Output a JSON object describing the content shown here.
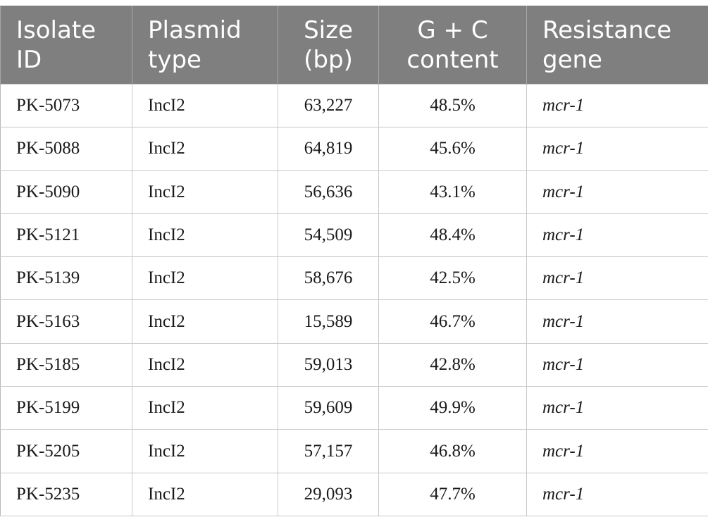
{
  "table": {
    "headers": [
      {
        "lines": [
          "Isolate",
          "ID"
        ]
      },
      {
        "lines": [
          "Plasmid",
          "type"
        ]
      },
      {
        "lines": [
          "Size",
          "(bp)"
        ]
      },
      {
        "lines": [
          "G + C",
          "content"
        ]
      },
      {
        "lines": [
          "Resistance",
          "gene"
        ]
      }
    ],
    "rows": [
      {
        "isolate_id": "PK-5073",
        "plasmid_type": "IncI2",
        "size": "63,227",
        "gc_content": "48.5%",
        "resistance_gene": "mcr-1"
      },
      {
        "isolate_id": "PK-5088",
        "plasmid_type": "IncI2",
        "size": "64,819",
        "gc_content": "45.6%",
        "resistance_gene": "mcr-1"
      },
      {
        "isolate_id": "PK-5090",
        "plasmid_type": "IncI2",
        "size": "56,636",
        "gc_content": "43.1%",
        "resistance_gene": "mcr-1"
      },
      {
        "isolate_id": "PK-5121",
        "plasmid_type": "IncI2",
        "size": "54,509",
        "gc_content": "48.4%",
        "resistance_gene": "mcr-1"
      },
      {
        "isolate_id": "PK-5139",
        "plasmid_type": "IncI2",
        "size": "58,676",
        "gc_content": "42.5%",
        "resistance_gene": "mcr-1"
      },
      {
        "isolate_id": "PK-5163",
        "plasmid_type": "IncI2",
        "size": "15,589",
        "gc_content": "46.7%",
        "resistance_gene": "mcr-1"
      },
      {
        "isolate_id": "PK-5185",
        "plasmid_type": "IncI2",
        "size": "59,013",
        "gc_content": "42.8%",
        "resistance_gene": "mcr-1"
      },
      {
        "isolate_id": "PK-5199",
        "plasmid_type": "IncI2",
        "size": "59,609",
        "gc_content": "49.9%",
        "resistance_gene": "mcr-1"
      },
      {
        "isolate_id": "PK-5205",
        "plasmid_type": "IncI2",
        "size": "57,157",
        "gc_content": "46.8%",
        "resistance_gene": "mcr-1"
      },
      {
        "isolate_id": "PK-5235",
        "plasmid_type": "IncI2",
        "size": "29,093",
        "gc_content": "47.7%",
        "resistance_gene": "mcr-1"
      }
    ]
  },
  "colors": {
    "header_background": "#7f7f7f",
    "header_text": "#ffffff",
    "grid_line": "#c8c8c8"
  }
}
